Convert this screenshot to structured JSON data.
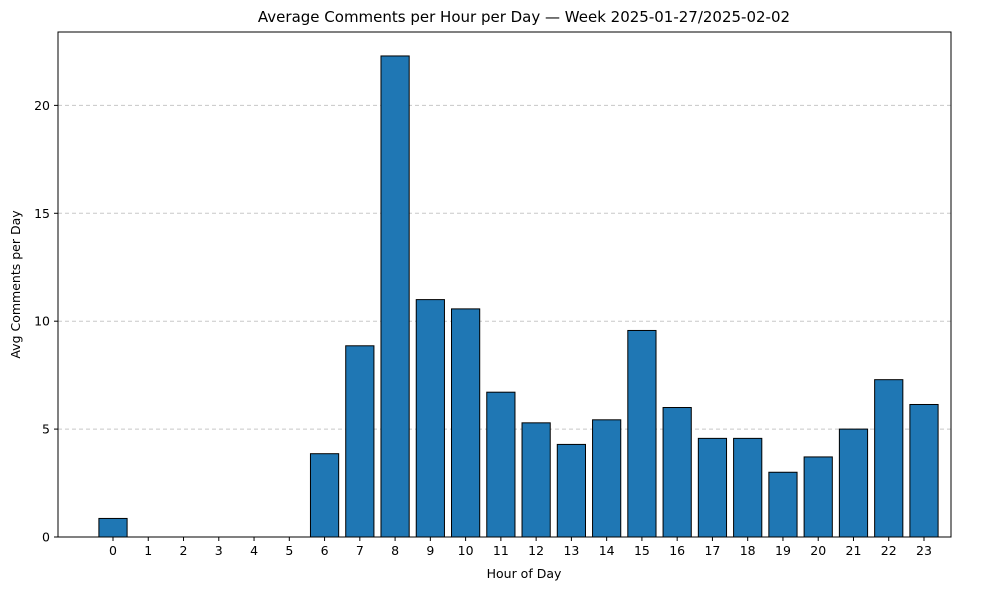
{
  "chart_data": {
    "type": "bar",
    "title": "Average Comments per Hour per Day — Week 2025-01-27/2025-02-02",
    "xlabel": "Hour of Day",
    "ylabel": "Avg Comments per Day",
    "categories": [
      "0",
      "1",
      "2",
      "3",
      "4",
      "5",
      "6",
      "7",
      "8",
      "9",
      "10",
      "11",
      "12",
      "13",
      "14",
      "15",
      "16",
      "17",
      "18",
      "19",
      "20",
      "21",
      "22",
      "23"
    ],
    "values": [
      0.86,
      0,
      0,
      0,
      0,
      0,
      3.86,
      8.86,
      22.29,
      11.0,
      10.57,
      6.71,
      5.29,
      4.29,
      5.43,
      9.57,
      6.0,
      4.57,
      4.57,
      3.0,
      3.71,
      5.0,
      7.29,
      6.14
    ],
    "ylim": [
      0,
      23.4
    ],
    "yticks": [
      0,
      5,
      10,
      15,
      20
    ],
    "grid": "y-dashed",
    "legend": "none",
    "bar_color": "#1f77b4",
    "edge_color": "#000000",
    "grid_color": "#c8c8c8"
  }
}
